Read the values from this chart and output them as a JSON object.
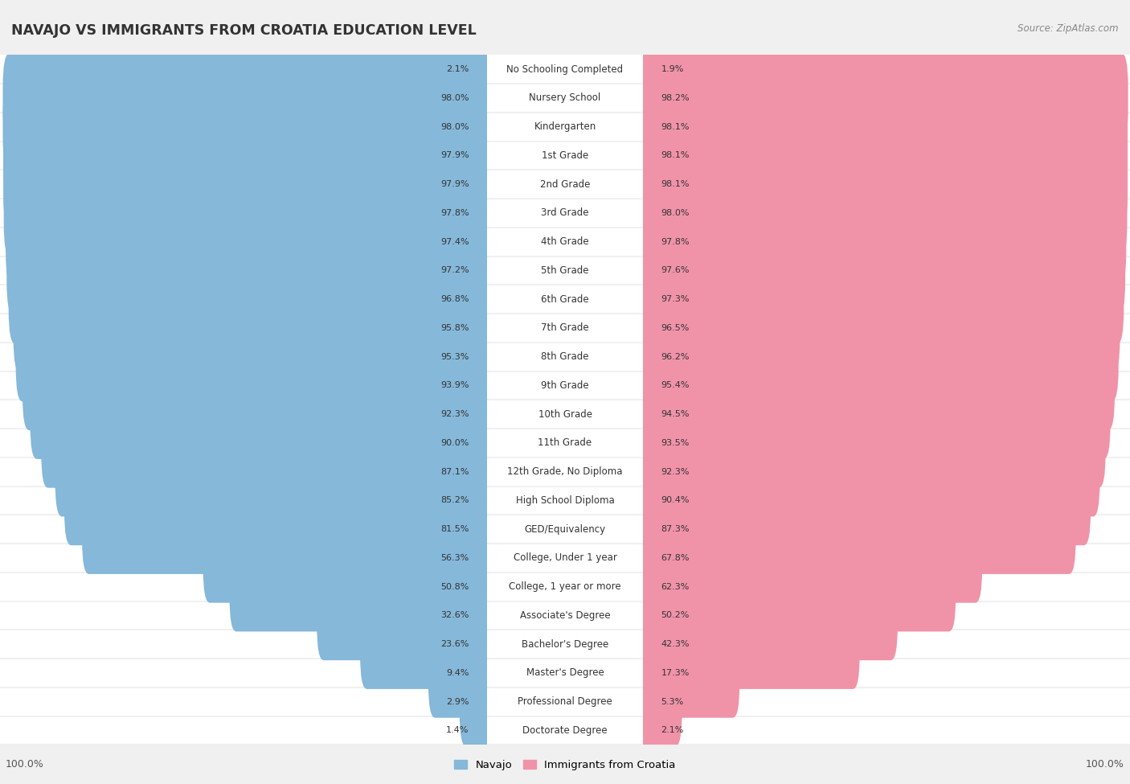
{
  "title": "NAVAJO VS IMMIGRANTS FROM CROATIA EDUCATION LEVEL",
  "source": "Source: ZipAtlas.com",
  "categories": [
    "No Schooling Completed",
    "Nursery School",
    "Kindergarten",
    "1st Grade",
    "2nd Grade",
    "3rd Grade",
    "4th Grade",
    "5th Grade",
    "6th Grade",
    "7th Grade",
    "8th Grade",
    "9th Grade",
    "10th Grade",
    "11th Grade",
    "12th Grade, No Diploma",
    "High School Diploma",
    "GED/Equivalency",
    "College, Under 1 year",
    "College, 1 year or more",
    "Associate's Degree",
    "Bachelor's Degree",
    "Master's Degree",
    "Professional Degree",
    "Doctorate Degree"
  ],
  "navajo": [
    2.1,
    98.0,
    98.0,
    97.9,
    97.9,
    97.8,
    97.4,
    97.2,
    96.8,
    95.8,
    95.3,
    93.9,
    92.3,
    90.0,
    87.1,
    85.2,
    81.5,
    56.3,
    50.8,
    32.6,
    23.6,
    9.4,
    2.9,
    1.4
  ],
  "croatia": [
    1.9,
    98.2,
    98.1,
    98.1,
    98.1,
    98.0,
    97.8,
    97.6,
    97.3,
    96.5,
    96.2,
    95.4,
    94.5,
    93.5,
    92.3,
    90.4,
    87.3,
    67.8,
    62.3,
    50.2,
    42.3,
    17.3,
    5.3,
    2.1
  ],
  "navajo_color": "#85b8d9",
  "croatia_color": "#f093a8",
  "bg_color": "#f0f0f0",
  "row_bg_color": "#ffffff",
  "row_alt_bg_color": "#f8f8f8",
  "legend_navajo": "Navajo",
  "legend_croatia": "Immigrants from Croatia",
  "axis_label_left": "100.0%",
  "axis_label_right": "100.0%",
  "label_fontsize": 8.5,
  "value_fontsize": 8.0,
  "title_fontsize": 12.5
}
